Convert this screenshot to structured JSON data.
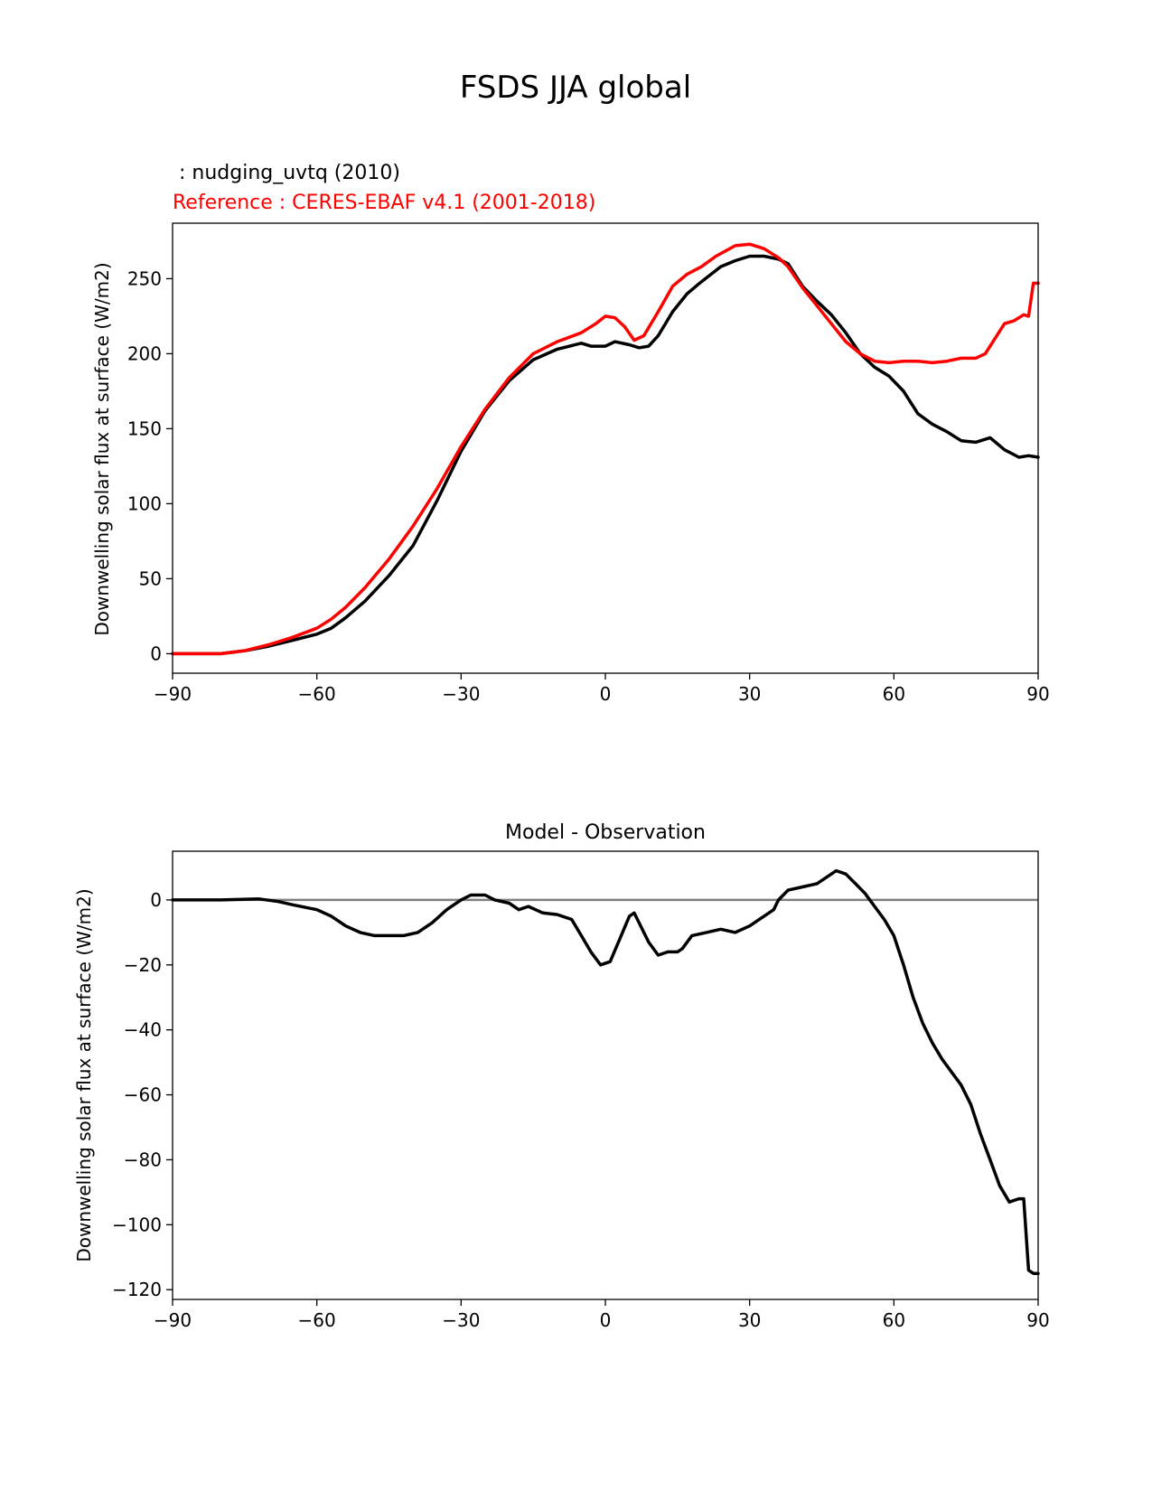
{
  "figure": {
    "title": "FSDS JJA global"
  },
  "chart_data": [
    {
      "type": "line",
      "test_label": " : nudging_uvtq (2010)",
      "reference_label": "Reference : CERES-EBAF v4.1 (2001-2018)",
      "ylabel": "Downwelling solar flux at surface (W/m2)",
      "xlabel": "",
      "xlim": [
        -90,
        90
      ],
      "ylim": [
        -13,
        287
      ],
      "xticks": [
        "−90",
        "−60",
        "−30",
        "0",
        "30",
        "60",
        "90"
      ],
      "xtick_values": [
        -90,
        -60,
        -30,
        0,
        30,
        60,
        90
      ],
      "yticks": [
        "0",
        "50",
        "100",
        "150",
        "200",
        "250"
      ],
      "ytick_values": [
        0,
        50,
        100,
        150,
        200,
        250
      ],
      "series": [
        {
          "color": "#000000",
          "points": [
            [
              -90,
              0
            ],
            [
              -85,
              0
            ],
            [
              -80,
              0
            ],
            [
              -75,
              2
            ],
            [
              -70,
              5
            ],
            [
              -65,
              9
            ],
            [
              -60,
              13
            ],
            [
              -57,
              17
            ],
            [
              -54,
              24
            ],
            [
              -50,
              35
            ],
            [
              -45,
              52
            ],
            [
              -40,
              72
            ],
            [
              -35,
              102
            ],
            [
              -30,
              135
            ],
            [
              -25,
              162
            ],
            [
              -20,
              182
            ],
            [
              -15,
              196
            ],
            [
              -10,
              203
            ],
            [
              -5,
              207
            ],
            [
              -3,
              205
            ],
            [
              0,
              205
            ],
            [
              2,
              208
            ],
            [
              5,
              206
            ],
            [
              7,
              204
            ],
            [
              9,
              205
            ],
            [
              11,
              212
            ],
            [
              14,
              228
            ],
            [
              17,
              240
            ],
            [
              20,
              248
            ],
            [
              24,
              258
            ],
            [
              27,
              262
            ],
            [
              30,
              265
            ],
            [
              33,
              265
            ],
            [
              36,
              263
            ],
            [
              38,
              260
            ],
            [
              41,
              245
            ],
            [
              44,
              235
            ],
            [
              47,
              226
            ],
            [
              50,
              214
            ],
            [
              53,
              200
            ],
            [
              56,
              191
            ],
            [
              59,
              185
            ],
            [
              62,
              175
            ],
            [
              65,
              160
            ],
            [
              68,
              153
            ],
            [
              71,
              148
            ],
            [
              74,
              142
            ],
            [
              77,
              141
            ],
            [
              80,
              144
            ],
            [
              83,
              136
            ],
            [
              86,
              131
            ],
            [
              88,
              132
            ],
            [
              90,
              131
            ]
          ]
        },
        {
          "color": "#ff0000",
          "points": [
            [
              -90,
              0
            ],
            [
              -85,
              0
            ],
            [
              -80,
              0
            ],
            [
              -75,
              2
            ],
            [
              -70,
              6
            ],
            [
              -65,
              11
            ],
            [
              -60,
              17
            ],
            [
              -57,
              23
            ],
            [
              -54,
              31
            ],
            [
              -50,
              44
            ],
            [
              -45,
              63
            ],
            [
              -40,
              85
            ],
            [
              -35,
              110
            ],
            [
              -30,
              138
            ],
            [
              -25,
              163
            ],
            [
              -20,
              184
            ],
            [
              -15,
              200
            ],
            [
              -10,
              208
            ],
            [
              -5,
              214
            ],
            [
              -2,
              220
            ],
            [
              0,
              225
            ],
            [
              2,
              224
            ],
            [
              4,
              218
            ],
            [
              6,
              209
            ],
            [
              8,
              212
            ],
            [
              11,
              228
            ],
            [
              14,
              245
            ],
            [
              17,
              253
            ],
            [
              20,
              258
            ],
            [
              23,
              265
            ],
            [
              27,
              272
            ],
            [
              30,
              273
            ],
            [
              33,
              270
            ],
            [
              36,
              264
            ],
            [
              38,
              258
            ],
            [
              41,
              244
            ],
            [
              44,
              232
            ],
            [
              47,
              220
            ],
            [
              50,
              208
            ],
            [
              53,
              200
            ],
            [
              56,
              195
            ],
            [
              59,
              194
            ],
            [
              62,
              195
            ],
            [
              65,
              195
            ],
            [
              68,
              194
            ],
            [
              71,
              195
            ],
            [
              74,
              197
            ],
            [
              77,
              197
            ],
            [
              79,
              200
            ],
            [
              81,
              210
            ],
            [
              83,
              220
            ],
            [
              85,
              222
            ],
            [
              87,
              226
            ],
            [
              88,
              225
            ],
            [
              89,
              247
            ],
            [
              90,
              247
            ]
          ]
        }
      ]
    },
    {
      "type": "line",
      "title": "Model - Observation",
      "ylabel": "Downwelling solar flux at surface (W/m2)",
      "xlabel": "",
      "xlim": [
        -90,
        90
      ],
      "ylim": [
        -123,
        15
      ],
      "xticks": [
        "−90",
        "−60",
        "−30",
        "0",
        "30",
        "60",
        "90"
      ],
      "xtick_values": [
        -90,
        -60,
        -30,
        0,
        30,
        60,
        90
      ],
      "yticks": [
        "0",
        "−20",
        "−40",
        "−60",
        "−80",
        "−100",
        "−120"
      ],
      "ytick_values": [
        0,
        -20,
        -40,
        -60,
        -80,
        -100,
        -120
      ],
      "zero_line_color": "#808080",
      "series": [
        {
          "color": "#000000",
          "points": [
            [
              -90,
              0
            ],
            [
              -80,
              0
            ],
            [
              -72,
              0.3
            ],
            [
              -68,
              -0.5
            ],
            [
              -65,
              -1.5
            ],
            [
              -60,
              -3
            ],
            [
              -57,
              -5
            ],
            [
              -54,
              -8
            ],
            [
              -51,
              -10
            ],
            [
              -48,
              -11
            ],
            [
              -45,
              -11
            ],
            [
              -42,
              -11
            ],
            [
              -39,
              -10
            ],
            [
              -36,
              -7
            ],
            [
              -33,
              -3
            ],
            [
              -30,
              0
            ],
            [
              -28,
              1.5
            ],
            [
              -25,
              1.5
            ],
            [
              -23,
              0
            ],
            [
              -20,
              -1
            ],
            [
              -18,
              -3
            ],
            [
              -16,
              -2
            ],
            [
              -13,
              -4
            ],
            [
              -10,
              -4.5
            ],
            [
              -7,
              -6
            ],
            [
              -5,
              -11
            ],
            [
              -3,
              -16
            ],
            [
              -1,
              -20
            ],
            [
              1,
              -19
            ],
            [
              3,
              -12
            ],
            [
              5,
              -5
            ],
            [
              6,
              -4
            ],
            [
              7,
              -7
            ],
            [
              9,
              -13
            ],
            [
              11,
              -17
            ],
            [
              13,
              -16
            ],
            [
              15,
              -16
            ],
            [
              16,
              -15
            ],
            [
              18,
              -11
            ],
            [
              21,
              -10
            ],
            [
              24,
              -9
            ],
            [
              27,
              -10
            ],
            [
              30,
              -8
            ],
            [
              33,
              -5
            ],
            [
              35,
              -3
            ],
            [
              36,
              0
            ],
            [
              38,
              3
            ],
            [
              41,
              4
            ],
            [
              44,
              5
            ],
            [
              46,
              7
            ],
            [
              48,
              9
            ],
            [
              50,
              8
            ],
            [
              52,
              5
            ],
            [
              54,
              2
            ],
            [
              56,
              -2
            ],
            [
              58,
              -6
            ],
            [
              60,
              -11
            ],
            [
              62,
              -20
            ],
            [
              64,
              -30
            ],
            [
              66,
              -38
            ],
            [
              68,
              -44
            ],
            [
              70,
              -49
            ],
            [
              72,
              -53
            ],
            [
              74,
              -57
            ],
            [
              76,
              -63
            ],
            [
              78,
              -72
            ],
            [
              80,
              -80
            ],
            [
              82,
              -88
            ],
            [
              84,
              -93
            ],
            [
              86,
              -92
            ],
            [
              87,
              -92
            ],
            [
              88,
              -114
            ],
            [
              89,
              -115
            ],
            [
              90,
              -115
            ]
          ]
        }
      ]
    }
  ]
}
